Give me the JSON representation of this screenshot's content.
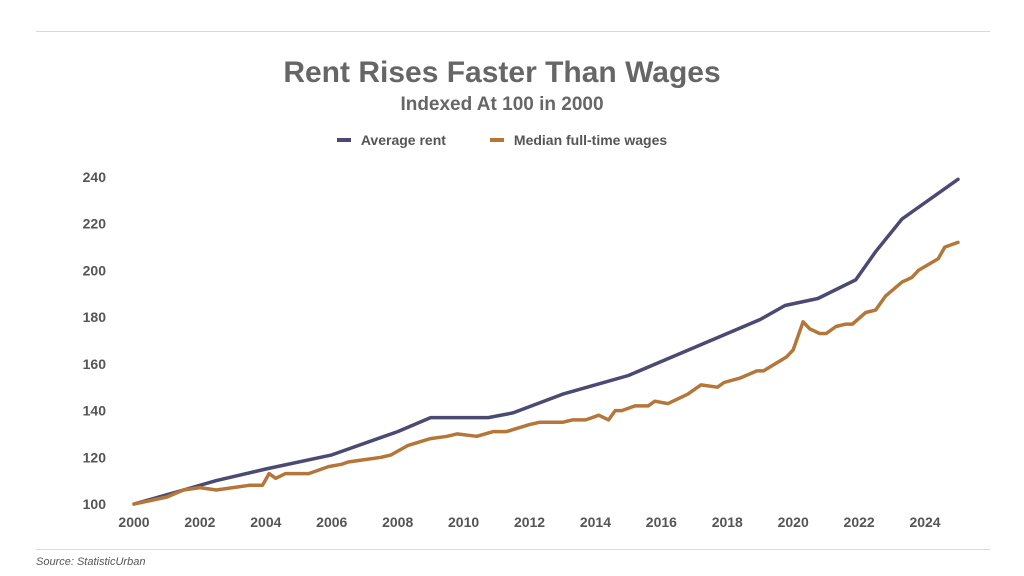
{
  "chart_data": {
    "type": "line",
    "title": "Rent Rises Faster Than Wages",
    "subtitle": "Indexed At 100 in 2000",
    "xlabel": "",
    "ylabel": "",
    "xlim": [
      2000,
      2025
    ],
    "ylim": [
      100,
      240
    ],
    "x_ticks": [
      2000,
      2002,
      2004,
      2006,
      2008,
      2010,
      2012,
      2014,
      2016,
      2018,
      2020,
      2022,
      2024
    ],
    "y_ticks": [
      100,
      120,
      140,
      160,
      180,
      200,
      220,
      240
    ],
    "grid": false,
    "legend_position": "top-center",
    "series": [
      {
        "name": "Average rent",
        "color": "#4a4a72",
        "x": [
          2000,
          2001.5,
          2002.5,
          2004,
          2006,
          2008,
          2009,
          2010,
          2010.75,
          2011.5,
          2013,
          2015,
          2017,
          2019,
          2019.75,
          2020.75,
          2021.9,
          2022.5,
          2023.3,
          2025
        ],
        "y": [
          100,
          106,
          110,
          115,
          121,
          131,
          137,
          137,
          137,
          139,
          147,
          155,
          167,
          179,
          185,
          188,
          196,
          208,
          222,
          239
        ]
      },
      {
        "name": "Median full-time wages",
        "color": "#b5763a",
        "x": [
          2000,
          2001,
          2001.5,
          2002,
          2002.5,
          2003,
          2003.5,
          2003.9,
          2004.1,
          2004.3,
          2004.6,
          2005,
          2005.3,
          2005.9,
          2006.3,
          2006.5,
          2007,
          2007.5,
          2007.8,
          2008.3,
          2009,
          2009.5,
          2009.8,
          2010.4,
          2010.9,
          2011.3,
          2012,
          2012.3,
          2012.6,
          2013,
          2013.3,
          2013.7,
          2013.9,
          2014.1,
          2014.4,
          2014.6,
          2014.8,
          2015.2,
          2015.6,
          2015.8,
          2016.2,
          2016.8,
          2017.2,
          2017.7,
          2017.9,
          2018.4,
          2018.9,
          2019.1,
          2019.8,
          2020,
          2020.3,
          2020.5,
          2020.8,
          2021,
          2021.3,
          2021.6,
          2021.8,
          2022.2,
          2022.5,
          2022.8,
          2023.3,
          2023.6,
          2023.8,
          2024.4,
          2024.6,
          2025
        ],
        "y": [
          100,
          103,
          106,
          107,
          106,
          107,
          108,
          108,
          113,
          111,
          113,
          113,
          113,
          116,
          117,
          118,
          119,
          120,
          121,
          125,
          128,
          129,
          130,
          129,
          131,
          131,
          134,
          135,
          135,
          135,
          136,
          136,
          137,
          138,
          136,
          140,
          140,
          142,
          142,
          144,
          143,
          147,
          151,
          150,
          152,
          154,
          157,
          157,
          163,
          166,
          178,
          175,
          173,
          173,
          176,
          177,
          177,
          182,
          183,
          189,
          195,
          197,
          200,
          205,
          210,
          212
        ]
      }
    ]
  },
  "source": "Source: StatisticUrban"
}
